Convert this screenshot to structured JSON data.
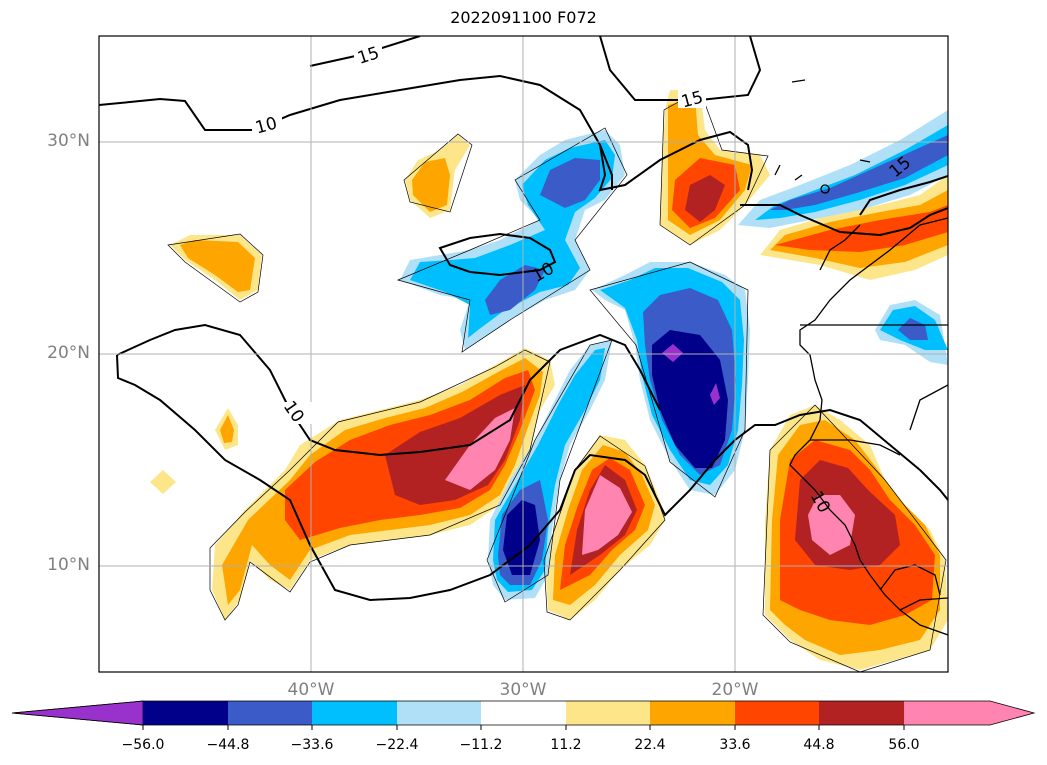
{
  "title": "2022091100 F072",
  "lat_labels": [
    "30°N",
    "20°N",
    "10°N"
  ],
  "lon_labels": [
    "40°W",
    "30°W",
    "20°W"
  ],
  "contour_labels": [
    "15",
    "15",
    "10",
    "10",
    "10",
    "15",
    "10"
  ],
  "colorbar": {
    "ticks": [
      "−56.0",
      "−44.8",
      "−33.6",
      "−22.4",
      "−11.2",
      "11.2",
      "22.4",
      "33.6",
      "44.8",
      "56.0"
    ],
    "colors": [
      "#9932cc",
      "#00008b",
      "#3a5bc8",
      "#00bfff",
      "#b0e0f8",
      "#ffffff",
      "#fde68a",
      "#ffa500",
      "#ff4500",
      "#b22222",
      "#ff85b0",
      "#ff85b0"
    ]
  },
  "map": {
    "extent_lon": [
      -50,
      -10
    ],
    "extent_lat": [
      5,
      35
    ],
    "grid": true
  }
}
